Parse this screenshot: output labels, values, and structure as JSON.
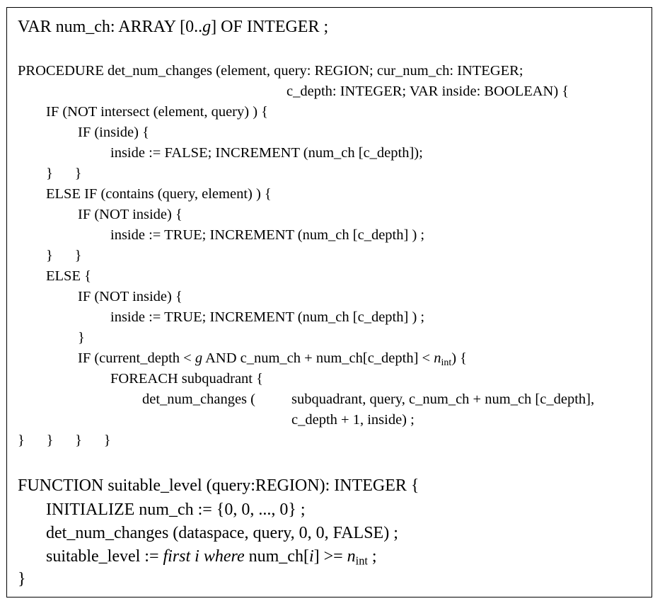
{
  "code": {
    "var_decl": {
      "prefix": "VAR num_ch: ARRAY [0..",
      "g": "g",
      "suffix": "] OF INTEGER ;"
    },
    "procedure": {
      "header_1": "PROCEDURE det_num_changes (element, query: REGION; cur_num_ch: INTEGER;",
      "header_2": "c_depth: INTEGER; VAR inside: BOOLEAN) {",
      "if_not_intersect": "IF (NOT intersect (element, query) ) {",
      "if_inside": "IF (inside) {",
      "set_false": "inside := FALSE; INCREMENT (num_ch [c_depth]);",
      "close_1": "}      }",
      "else_if_contains": "ELSE IF (contains (query, element) ) {",
      "if_not_inside_1": "IF (NOT inside) {",
      "set_true_1": "inside := TRUE; INCREMENT (num_ch [c_depth] ) ;",
      "close_2": "}      }",
      "else": "ELSE {",
      "if_not_inside_2": "IF (NOT inside) {",
      "set_true_2": "inside := TRUE; INCREMENT (num_ch [c_depth] ) ;",
      "close_3": "}",
      "if_depth_a": "IF (current_depth < ",
      "if_depth_g": "g",
      "if_depth_b": " AND c_num_ch + num_ch[c_depth] < ",
      "if_depth_n": "n",
      "if_depth_sub": "int",
      "if_depth_c": ") {",
      "foreach": "FOREACH subquadrant {",
      "recursive_call": "det_num_changes (",
      "args_1": "subquadrant, query, c_num_ch + num_ch [c_depth],",
      "args_2": "c_depth + 1, inside) ;",
      "closing": "}      }      }      }"
    },
    "function": {
      "header": "FUNCTION suitable_level (query:REGION): INTEGER {",
      "init": "INITIALIZE num_ch := {0, 0, ..., 0} ;",
      "call": "det_num_changes (dataspace, query, 0, 0, FALSE) ;",
      "assign_a": "suitable_level := ",
      "assign_first": "first i where",
      "assign_b": " num_ch[",
      "assign_i": "i",
      "assign_c": "] >= ",
      "assign_n": "n",
      "assign_sub": "int",
      "assign_d": " ;",
      "close": "}"
    }
  }
}
